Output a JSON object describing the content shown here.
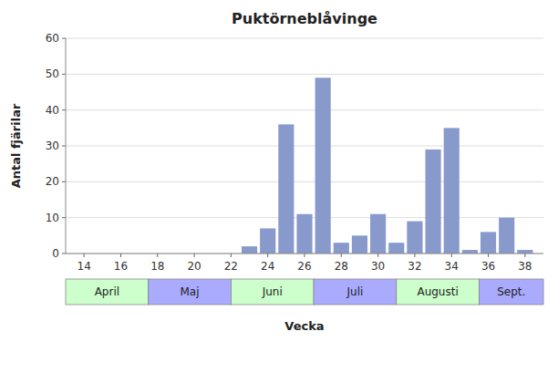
{
  "chart_data": {
    "type": "bar",
    "title": "Puktörneblåvinge",
    "xlabel": "Vecka",
    "ylabel": "Antal fjärilar",
    "x": [
      23,
      24,
      25,
      26,
      27,
      28,
      29,
      30,
      31,
      32,
      33,
      34,
      35,
      36,
      37,
      38
    ],
    "values": [
      2,
      7,
      36,
      11,
      49,
      3,
      5,
      11,
      3,
      9,
      29,
      35,
      1,
      6,
      10,
      1
    ],
    "color": "#8899cc",
    "xlim": [
      13,
      39
    ],
    "xticks": [
      14,
      16,
      18,
      20,
      22,
      24,
      26,
      28,
      30,
      32,
      34,
      36,
      38
    ],
    "ylim": [
      0,
      60
    ],
    "yticks": [
      0,
      10,
      20,
      30,
      40,
      50,
      60
    ],
    "grid": "y",
    "annotations": [
      {
        "text": "April",
        "x": [
          13.0,
          17.5
        ],
        "color": "#ccffcc"
      },
      {
        "text": "Maj",
        "x": [
          17.5,
          22.0
        ],
        "color": "#aaaaff"
      },
      {
        "text": "Juni",
        "x": [
          22.0,
          26.5
        ],
        "color": "#ccffcc"
      },
      {
        "text": "Juli",
        "x": [
          26.5,
          31.0
        ],
        "color": "#aaaaff"
      },
      {
        "text": "Augusti",
        "x": [
          31.0,
          35.5
        ],
        "color": "#ccffcc"
      },
      {
        "text": "Sept.",
        "x": [
          35.5,
          39.0
        ],
        "color": "#aaaaff"
      }
    ]
  }
}
